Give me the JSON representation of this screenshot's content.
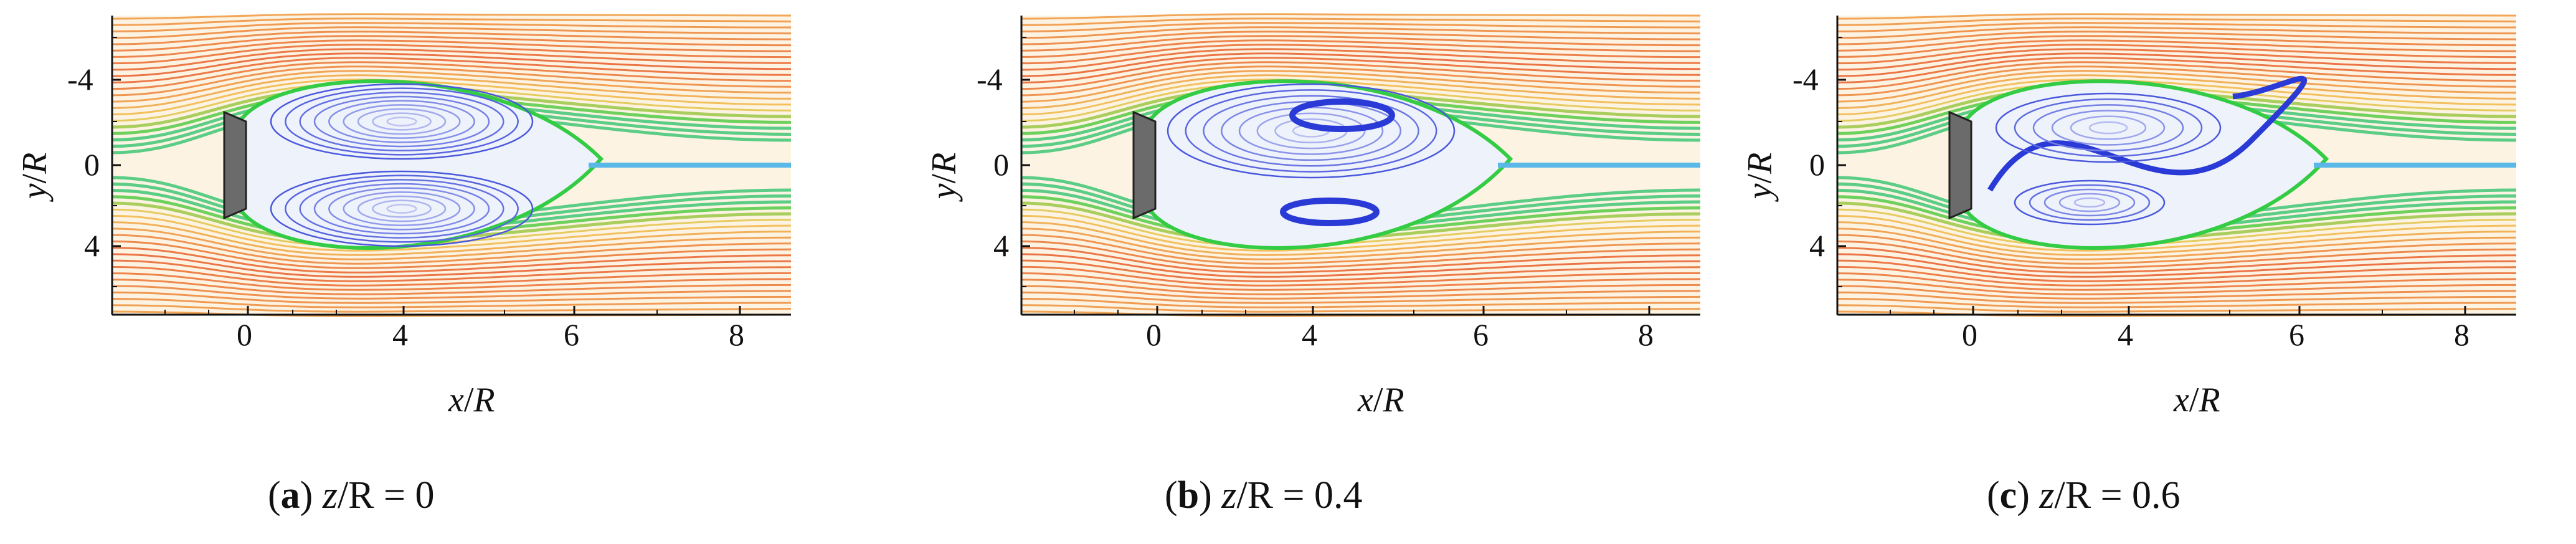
{
  "figure": {
    "panels": [
      {
        "id": "a",
        "ylabel_parts": [
          "y",
          "/",
          "R"
        ],
        "xlabel_parts": [
          "x",
          "/",
          "R"
        ],
        "yticks": [
          "-4",
          "0",
          "4"
        ],
        "xticks": [
          "0",
          "4",
          "6",
          "8"
        ],
        "caption_letter": "a",
        "caption_var": "z",
        "caption_rest": "/R = 0",
        "vortices": "symmetric-pair"
      },
      {
        "id": "b",
        "ylabel_parts": [
          "y",
          "/",
          "R"
        ],
        "xlabel_parts": [
          "x",
          "/",
          "R"
        ],
        "yticks": [
          "-4",
          "0",
          "4"
        ],
        "xticks": [
          "0",
          "4",
          "6",
          "8"
        ],
        "caption_letter": "b",
        "caption_var": "z",
        "caption_rest": "/R = 0.4",
        "vortices": "two-small-cores"
      },
      {
        "id": "c",
        "ylabel_parts": [
          "y",
          "/",
          "R"
        ],
        "xlabel_parts": [
          "x",
          "/",
          "R"
        ],
        "yticks": [
          "-4",
          "0",
          "4"
        ],
        "xticks": [
          "0",
          "4",
          "6",
          "8"
        ],
        "caption_letter": "c",
        "caption_var": "z",
        "caption_rest": "/R = 0.6",
        "vortices": "s-shaped"
      }
    ],
    "colors": {
      "outer_flow": "#e85a2a",
      "mid_flow": "#f2c24a",
      "shear_layer": "#33cc44",
      "recirculation": "#2a3ad6",
      "wake_core": "#5ab8e8"
    }
  }
}
